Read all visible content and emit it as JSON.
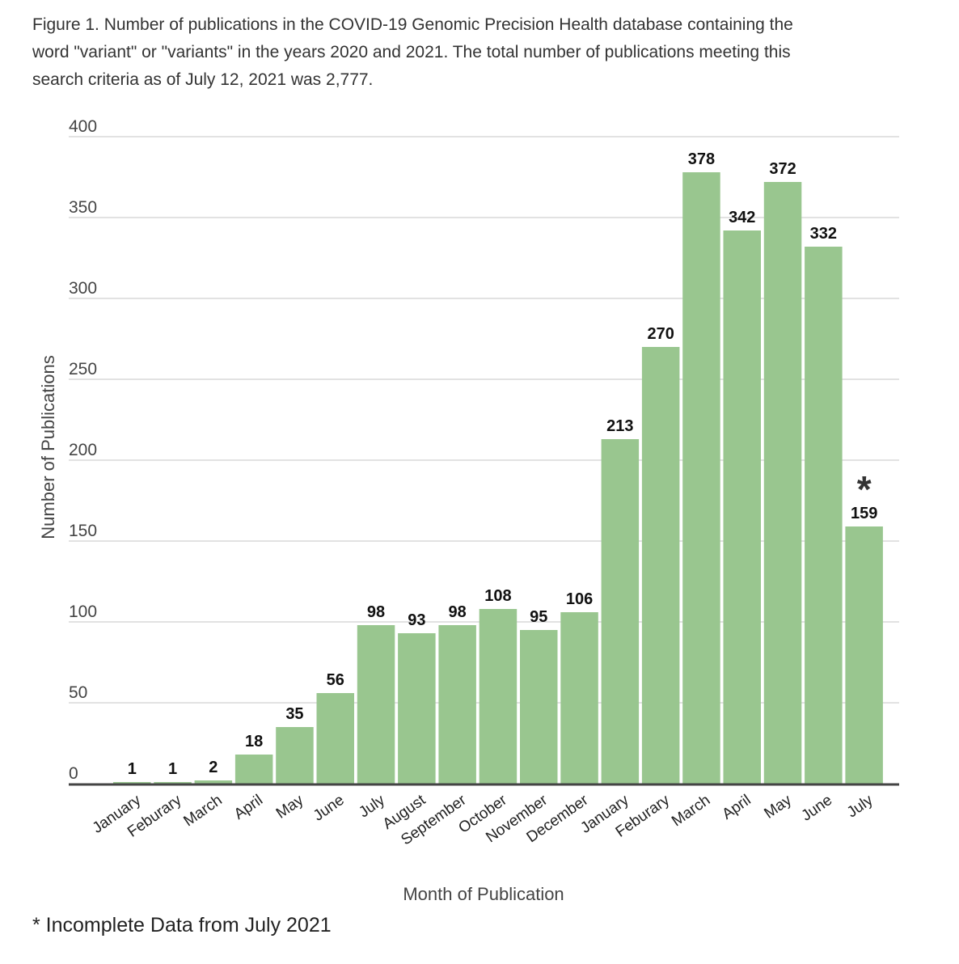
{
  "figure": {
    "title_lines": [
      "Figure 1. Number of publications in the COVID-19 Genomic Precision Health database containing the",
      "word \"variant\" or \"variants\" in the years 2020 and 2021. The total number of publications meeting this",
      "search criteria as of July 12, 2021 was 2,777."
    ],
    "footnote": "* Incomplete Data from July 2021"
  },
  "chart_data": {
    "type": "bar",
    "title": "",
    "xlabel": "Month of Publication",
    "ylabel": "Number of Publications",
    "ylim": [
      0,
      400
    ],
    "yticks": [
      "0",
      "50",
      "100",
      "150",
      "200",
      "250",
      "300",
      "350",
      "400"
    ],
    "grid": true,
    "bar_color": "#99c68f",
    "categories": [
      "January",
      "Feburary",
      "March",
      "April",
      "May",
      "June",
      "July",
      "August",
      "September",
      "October",
      "November",
      "December",
      "January",
      "Feburary",
      "March",
      "April",
      "May",
      "June",
      "July"
    ],
    "values": [
      1,
      1,
      2,
      18,
      35,
      56,
      98,
      93,
      98,
      108,
      95,
      106,
      213,
      270,
      378,
      342,
      372,
      332,
      159
    ],
    "annotations": [
      {
        "category_index": 18,
        "text": "*"
      }
    ]
  }
}
